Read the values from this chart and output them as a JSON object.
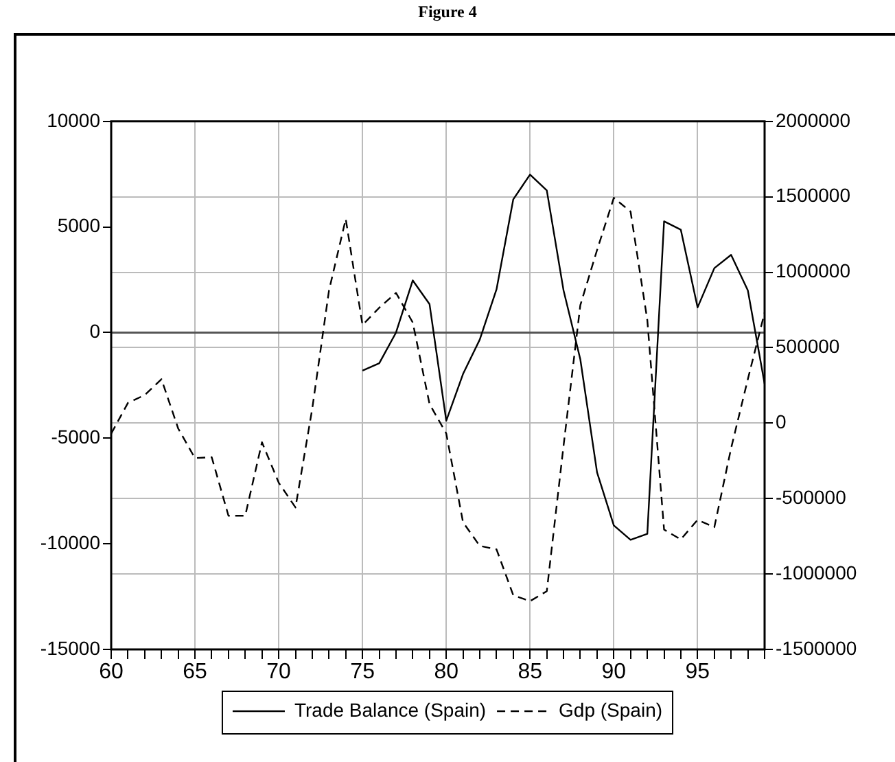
{
  "chart_data": {
    "type": "line",
    "title": "Figure 4",
    "x": [
      60,
      61,
      62,
      63,
      64,
      65,
      66,
      67,
      68,
      69,
      70,
      71,
      72,
      73,
      74,
      75,
      76,
      77,
      78,
      79,
      80,
      81,
      82,
      83,
      84,
      85,
      86,
      87,
      88,
      89,
      90,
      91,
      92,
      93,
      94,
      95,
      96,
      97,
      98,
      99
    ],
    "series": [
      {
        "name": "Trade Balance (Spain)",
        "color": "#000000",
        "line_style": "solid",
        "axis": "y",
        "values": [
          null,
          null,
          null,
          null,
          null,
          null,
          null,
          null,
          null,
          null,
          null,
          null,
          null,
          null,
          null,
          -1800,
          -1450,
          0,
          2470,
          1350,
          -4170,
          -1960,
          -330,
          2050,
          6310,
          7480,
          6730,
          2000,
          -1260,
          -6620,
          -9130,
          -9810,
          -9530,
          5270,
          4870,
          1190,
          3050,
          3680,
          2000,
          -2420
        ]
      },
      {
        "name": "Gdp (Spain)",
        "color": "#000000",
        "line_style": "dashed",
        "axis": "y2",
        "values": [
          -70000,
          134000,
          186000,
          291000,
          -36000,
          -232000,
          -226000,
          -614000,
          -614000,
          -127000,
          -395000,
          -559000,
          95000,
          879000,
          1353000,
          650000,
          765000,
          863000,
          667000,
          127000,
          -69000,
          -657000,
          -814000,
          -837000,
          -1141000,
          -1180000,
          -1114000,
          -150000,
          781000,
          1147000,
          1493000,
          1402000,
          683000,
          -706000,
          -771000,
          -641000,
          -690000,
          -167000,
          291000,
          732000
        ]
      }
    ],
    "xlim": [
      60,
      99
    ],
    "xticks": [
      60,
      {
        "value": 61,
        "label": null
      },
      {
        "value": 62,
        "label": null
      },
      {
        "value": 63,
        "label": null
      },
      {
        "value": 64,
        "label": null
      },
      65,
      {
        "value": 66,
        "label": null
      },
      {
        "value": 67,
        "label": null
      },
      {
        "value": 68,
        "label": null
      },
      {
        "value": 69,
        "label": null
      },
      70,
      {
        "value": 71,
        "label": null
      },
      {
        "value": 72,
        "label": null
      },
      {
        "value": 73,
        "label": null
      },
      {
        "value": 74,
        "label": null
      },
      75,
      {
        "value": 76,
        "label": null
      },
      {
        "value": 77,
        "label": null
      },
      {
        "value": 78,
        "label": null
      },
      {
        "value": 79,
        "label": null
      },
      80,
      {
        "value": 81,
        "label": null
      },
      {
        "value": 82,
        "label": null
      },
      {
        "value": 83,
        "label": null
      },
      {
        "value": 84,
        "label": null
      },
      85,
      {
        "value": 86,
        "label": null
      },
      {
        "value": 87,
        "label": null
      },
      {
        "value": 88,
        "label": null
      },
      {
        "value": 89,
        "label": null
      },
      90,
      {
        "value": 91,
        "label": null
      },
      {
        "value": 92,
        "label": null
      },
      {
        "value": 93,
        "label": null
      },
      {
        "value": 94,
        "label": null
      },
      95,
      {
        "value": 96,
        "label": null
      },
      {
        "value": 97,
        "label": null
      },
      {
        "value": 98,
        "label": null
      },
      {
        "value": 99,
        "label": null
      }
    ],
    "ylim": [
      -15000,
      10000
    ],
    "yticks": [
      -15000,
      -10000,
      -5000,
      0,
      5000,
      10000
    ],
    "y2lim": [
      -1500000,
      2000000
    ],
    "y2ticks": [
      -1500000,
      -1000000,
      -500000,
      0,
      500000,
      1000000,
      1500000,
      2000000
    ],
    "ref_lines": [
      {
        "axis": "y",
        "value": 0,
        "color": "#555555",
        "line_style": "solid"
      }
    ],
    "grid": true,
    "legend": "bottom",
    "marker": "none"
  }
}
